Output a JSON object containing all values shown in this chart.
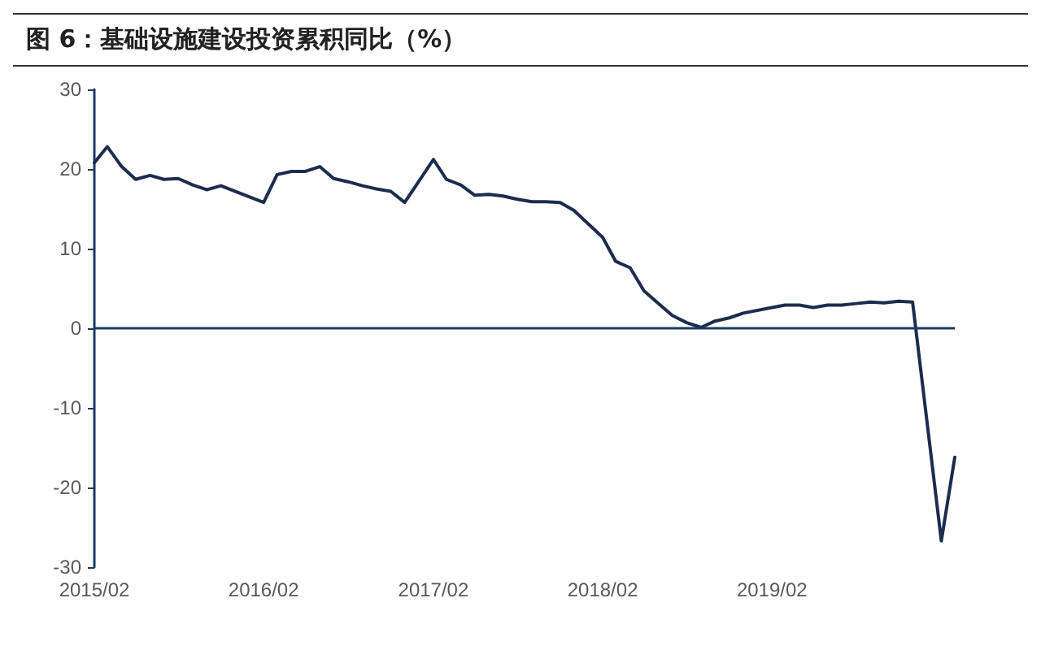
{
  "chart_data": {
    "type": "line",
    "title": "图 6：基础设施建设投资累积同比（%）",
    "x": [
      "2015-02",
      "2015-03",
      "2015-04",
      "2015-05",
      "2015-06",
      "2015-07",
      "2015-08",
      "2015-09",
      "2015-10",
      "2015-11",
      "2015-12",
      "2016-02",
      "2016-03",
      "2016-04",
      "2016-05",
      "2016-06",
      "2016-07",
      "2016-08",
      "2016-09",
      "2016-10",
      "2016-11",
      "2016-12",
      "2017-02",
      "2017-03",
      "2017-04",
      "2017-05",
      "2017-06",
      "2017-07",
      "2017-08",
      "2017-09",
      "2017-10",
      "2017-11",
      "2017-12",
      "2018-02",
      "2018-03",
      "2018-04",
      "2018-05",
      "2018-06",
      "2018-07",
      "2018-08",
      "2018-09",
      "2018-10",
      "2018-11",
      "2018-12",
      "2019-02",
      "2019-03",
      "2019-04",
      "2019-05",
      "2019-06",
      "2019-07",
      "2019-08",
      "2019-09",
      "2019-10",
      "2019-11",
      "2019-12",
      "2020-02",
      "2020-03"
    ],
    "series": [
      {
        "color": "#1b2d4f",
        "values": [
          20.8,
          22.8,
          20.3,
          18.7,
          19.2,
          18.7,
          18.8,
          18.0,
          17.4,
          17.9,
          17.2,
          15.8,
          19.3,
          19.7,
          19.7,
          20.3,
          18.8,
          18.4,
          17.9,
          17.5,
          17.2,
          15.8,
          21.2,
          18.7,
          18.0,
          16.7,
          16.8,
          16.6,
          16.2,
          15.9,
          15.9,
          15.8,
          14.8,
          11.4,
          8.4,
          7.6,
          4.7,
          3.1,
          1.6,
          0.7,
          0.1,
          0.9,
          1.3,
          1.9,
          2.6,
          2.9,
          2.9,
          2.6,
          2.9,
          2.9,
          3.1,
          3.3,
          3.2,
          3.4,
          3.3,
          -26.7,
          -16.2
        ]
      }
    ],
    "xlim": [
      "2015-02",
      "2020-03"
    ],
    "xticks": [
      {
        "value": "2015-02",
        "label": "2015/02"
      },
      {
        "value": "2016-02",
        "label": "2016/02"
      },
      {
        "value": "2017-02",
        "label": "2017/02"
      },
      {
        "value": "2018-02",
        "label": "2018/02"
      },
      {
        "value": "2019-02",
        "label": "2019/02"
      }
    ],
    "ylim": [
      -30,
      30
    ],
    "yticks": [
      -30,
      -20,
      -10,
      0,
      10,
      20,
      30
    ],
    "ref_lines": [
      {
        "axis": "y",
        "value": 0,
        "color": "#1b3a63"
      }
    ],
    "grid": false,
    "marker": "none",
    "line_style": "solid"
  }
}
